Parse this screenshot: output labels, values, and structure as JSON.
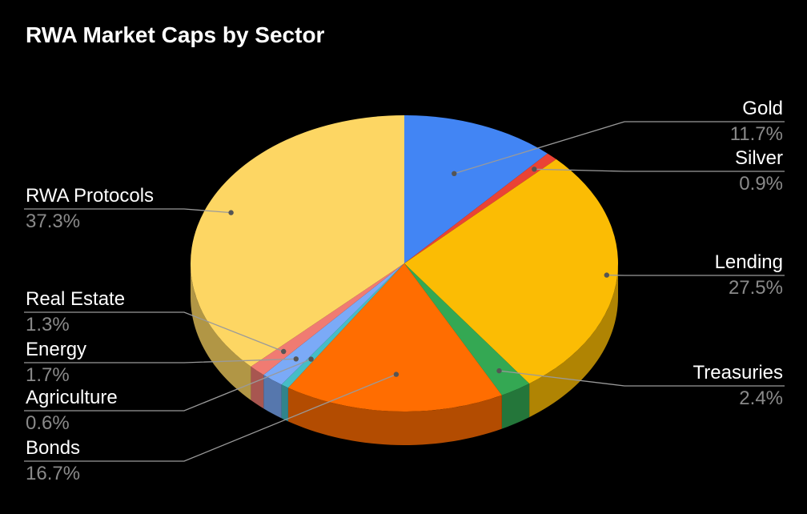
{
  "chart_data": {
    "type": "pie",
    "title": "RWA Market Caps by Sector",
    "slices": [
      {
        "label": "Gold",
        "value": 11.7,
        "value_label": "11.7%",
        "color": "#4285f4"
      },
      {
        "label": "Silver",
        "value": 0.9,
        "value_label": "0.9%",
        "color": "#ea4335"
      },
      {
        "label": "Lending",
        "value": 27.5,
        "value_label": "27.5%",
        "color": "#fbbc04"
      },
      {
        "label": "Treasuries",
        "value": 2.4,
        "value_label": "2.4%",
        "color": "#34a853"
      },
      {
        "label": "Bonds",
        "value": 16.7,
        "value_label": "16.7%",
        "color": "#ff6d01"
      },
      {
        "label": "Agriculture",
        "value": 0.6,
        "value_label": "0.6%",
        "color": "#46bdc6"
      },
      {
        "label": "Energy",
        "value": 1.7,
        "value_label": "1.7%",
        "color": "#7baaf7"
      },
      {
        "label": "Real Estate",
        "value": 1.3,
        "value_label": "1.3%",
        "color": "#f07b72"
      },
      {
        "label": "RWA Protocols",
        "value": 37.3,
        "value_label": "37.3%",
        "color": "#fdd663"
      }
    ],
    "legend": "none",
    "style": "3d"
  }
}
